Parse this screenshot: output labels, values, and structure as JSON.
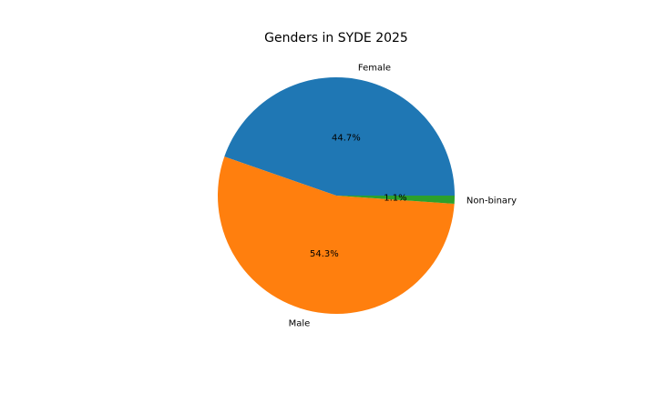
{
  "chart_data": {
    "type": "pie",
    "title": "Genders in SYDE 2025",
    "slices": [
      {
        "label": "Female",
        "value": 44.7,
        "pct_label": "44.7%",
        "color": "#1f77b4"
      },
      {
        "label": "Male",
        "value": 54.3,
        "pct_label": "54.3%",
        "color": "#ff7f0e"
      },
      {
        "label": "Non-binary",
        "value": 1.1,
        "pct_label": "1.1%",
        "color": "#2ca02c"
      }
    ],
    "start_angle_deg": 0,
    "direction": "counterclockwise",
    "legend": "none"
  }
}
